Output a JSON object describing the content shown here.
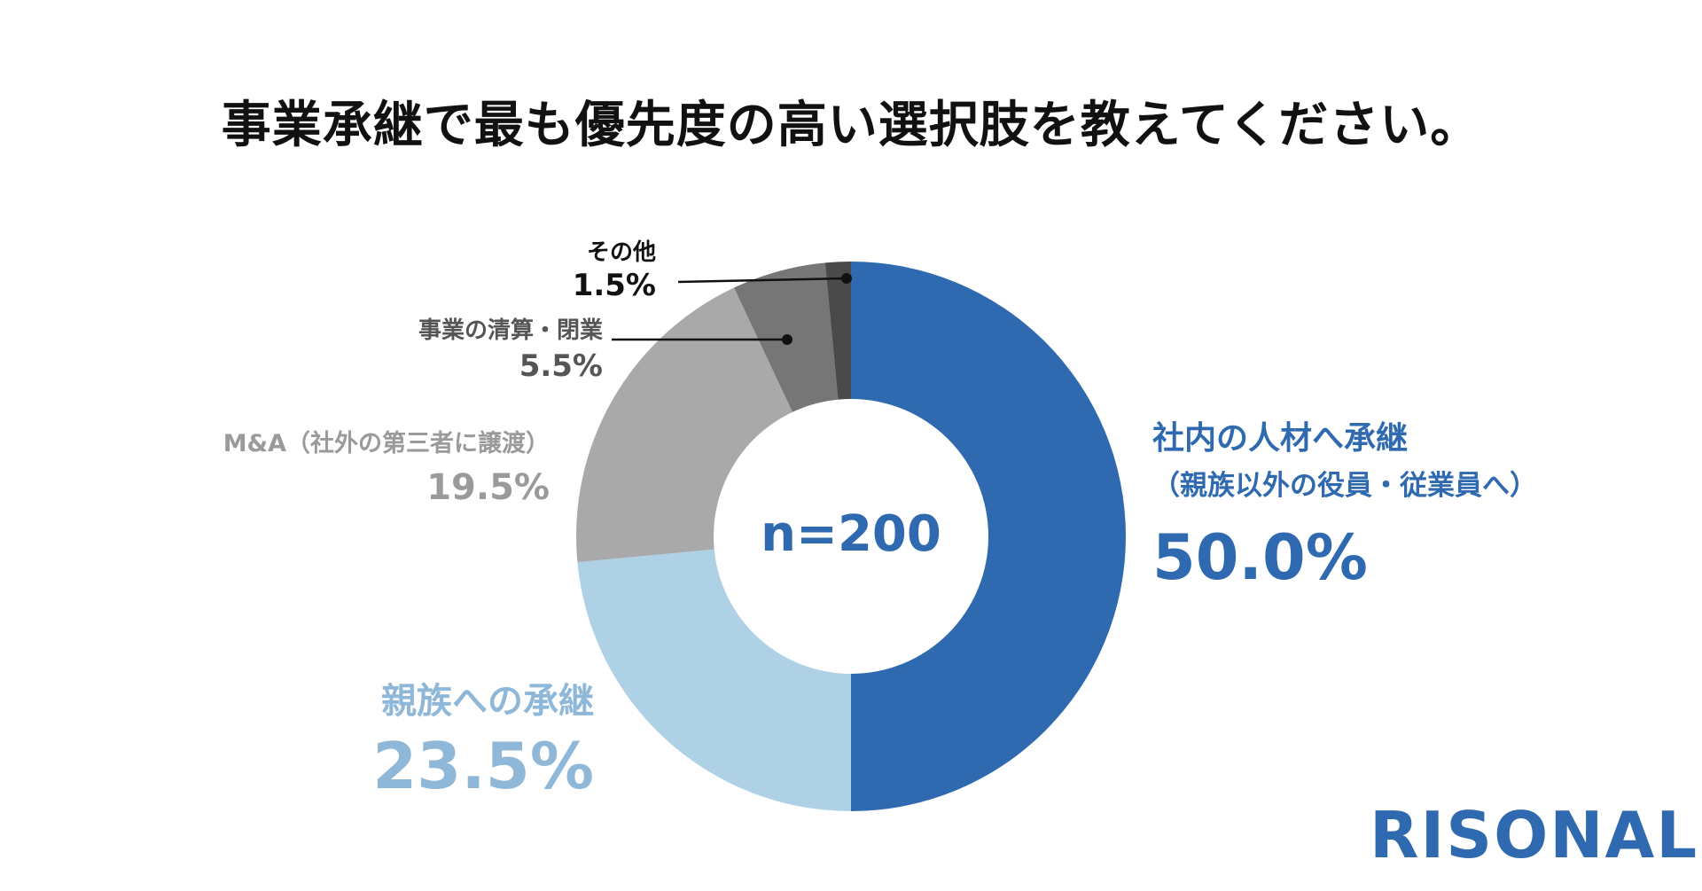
{
  "chart_data": {
    "type": "pie",
    "donut": true,
    "title": "事業承継で最も優先度の高い選択肢を教えてください。",
    "center_label": "n=200",
    "slices": [
      {
        "name": "社内の人材へ承継",
        "sub": "（親族以外の役員・従業員へ）",
        "value": 50.0,
        "label": "50.0%",
        "color": "#2f6ab0"
      },
      {
        "name": "親族への承継",
        "value": 23.5,
        "label": "23.5%",
        "color": "#aed1e6"
      },
      {
        "name": "M&A（社外の第三者に譲渡）",
        "value": 19.5,
        "label": "19.5%",
        "color": "#a9a9a9"
      },
      {
        "name": "事業の清算・閉業",
        "value": 5.5,
        "label": "5.5%",
        "color": "#767676"
      },
      {
        "name": "その他",
        "value": 1.5,
        "label": "1.5%",
        "color": "#4a4a4a"
      }
    ]
  },
  "logo": "RISONAL"
}
